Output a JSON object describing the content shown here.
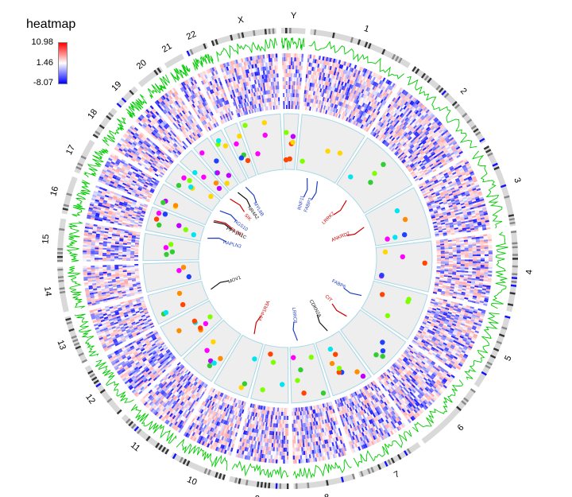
{
  "legend": {
    "title": "heatmap",
    "max_label": "10.98",
    "mid_label": "1.46",
    "min_label": "-8.07",
    "high_color": "#ff0000",
    "mid_color": "#ffffff",
    "low_color": "#0000ff"
  },
  "chart_data": {
    "type": "heatmap",
    "layout": "circos",
    "chromosomes": [
      "1",
      "2",
      "3",
      "4",
      "5",
      "6",
      "7",
      "8",
      "9",
      "10",
      "11",
      "12",
      "13",
      "14",
      "15",
      "16",
      "17",
      "18",
      "19",
      "20",
      "21",
      "22",
      "X",
      "Y"
    ],
    "tracks": [
      "ideogram",
      "line (green)",
      "heatmap",
      "scatter points",
      "gene labels with links"
    ],
    "heatmap_range": [
      -8.07,
      10.98
    ],
    "gene_labels": [
      {
        "chrom": "1",
        "label": "RNF11",
        "color": "#1f3fbf"
      },
      {
        "chrom": "1",
        "label": "FABP3",
        "color": "#1f3fbf"
      },
      {
        "chrom": "2",
        "label": "LRRK2",
        "color": "#cc0000"
      },
      {
        "chrom": "3",
        "label": "ANKRD2",
        "color": "#cc0000"
      },
      {
        "chrom": "5",
        "label": "FABP6",
        "color": "#1f3fbf"
      },
      {
        "chrom": "6",
        "label": "CIT",
        "color": "#cc0000"
      },
      {
        "chrom": "7",
        "label": "CDKN2A",
        "color": "#111111"
      },
      {
        "chrom": "8",
        "label": "LRRC8",
        "color": "#1f3fbf"
      },
      {
        "chrom": "10",
        "label": "PPP1R3A",
        "color": "#cc0000"
      },
      {
        "chrom": "13",
        "label": "MOV1",
        "color": "#111111"
      },
      {
        "chrom": "16",
        "label": "HAPLN3",
        "color": "#1f3fbf"
      },
      {
        "chrom": "17",
        "label": "PLIN3",
        "color": "#cc0000"
      },
      {
        "chrom": "17",
        "label": "PPP1R1C",
        "color": "#111111"
      },
      {
        "chrom": "18",
        "label": "RGS10",
        "color": "#1f3fbf"
      },
      {
        "chrom": "19",
        "label": "SIK",
        "color": "#cc0000"
      },
      {
        "chrom": "20",
        "label": "NR4A2",
        "color": "#111111"
      },
      {
        "chrom": "21",
        "label": "MYL6B",
        "color": "#1f3fbf"
      }
    ],
    "point_colors": [
      "#7fff00",
      "#00e5ee",
      "#ff4500",
      "#1e40ff",
      "#bf00ff",
      "#ff00ff",
      "#ffd700",
      "#ff8c00",
      "#32cd32"
    ],
    "line_color": "#00cc00"
  }
}
